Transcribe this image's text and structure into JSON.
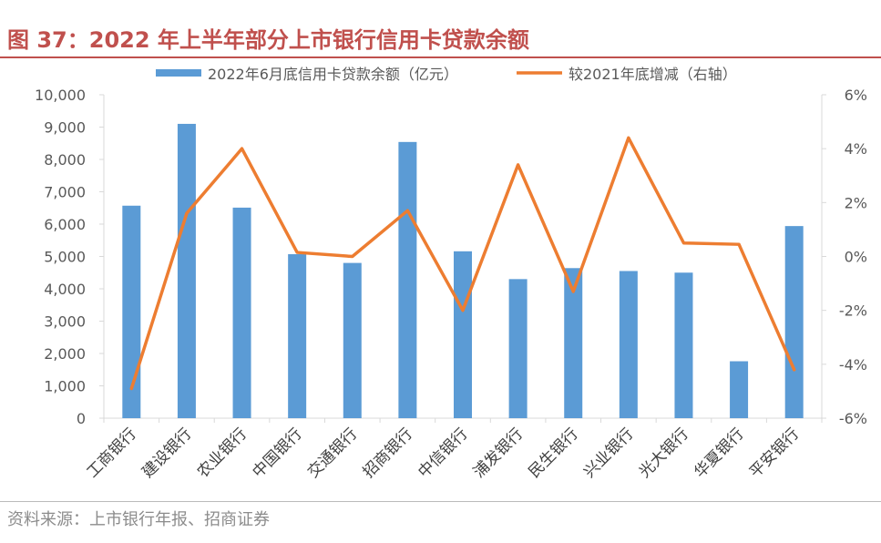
{
  "figure": {
    "title": "图 37：2022 年上半年部分上市银行信用卡贷款余额",
    "source": "资料来源：上市银行年报、招商证券"
  },
  "colors": {
    "title": "#c0504d",
    "bar": "#5b9bd5",
    "line": "#ed7d31",
    "axis": "#d9d9d9",
    "text": "#595959"
  },
  "chart_data": {
    "type": "bar",
    "categories": [
      "工商银行",
      "建设银行",
      "农业银行",
      "中国银行",
      "交通银行",
      "招商银行",
      "中信银行",
      "浦发银行",
      "民生银行",
      "兴业银行",
      "光大银行",
      "华夏银行",
      "平安银行"
    ],
    "series": [
      {
        "name": "2022年6月底信用卡贷款余额（亿元）",
        "type": "bar",
        "axis": "left",
        "values": [
          6570,
          9100,
          6510,
          5070,
          4800,
          8540,
          5160,
          4300,
          4640,
          4550,
          4500,
          1760,
          5940
        ]
      },
      {
        "name": "较2021年底增减（右轴）",
        "type": "line",
        "axis": "right",
        "values": [
          -4.9,
          1.6,
          4.0,
          0.15,
          0.0,
          1.7,
          -2.0,
          3.4,
          -1.3,
          4.4,
          0.5,
          0.45,
          -4.2
        ]
      }
    ],
    "left_axis": {
      "ylim": [
        0,
        10000
      ],
      "ticks": [
        0,
        1000,
        2000,
        3000,
        4000,
        5000,
        6000,
        7000,
        8000,
        9000,
        10000
      ],
      "tick_labels": [
        "0",
        "1,000",
        "2,000",
        "3,000",
        "4,000",
        "5,000",
        "6,000",
        "7,000",
        "8,000",
        "9,000",
        "10,000"
      ]
    },
    "right_axis": {
      "ylim": [
        -6,
        6
      ],
      "ticks": [
        -6,
        -4,
        -2,
        0,
        2,
        4,
        6
      ],
      "tick_labels": [
        "-6%",
        "-4%",
        "-2%",
        "0%",
        "2%",
        "4%",
        "6%"
      ]
    },
    "grid": false,
    "legend": "top"
  }
}
